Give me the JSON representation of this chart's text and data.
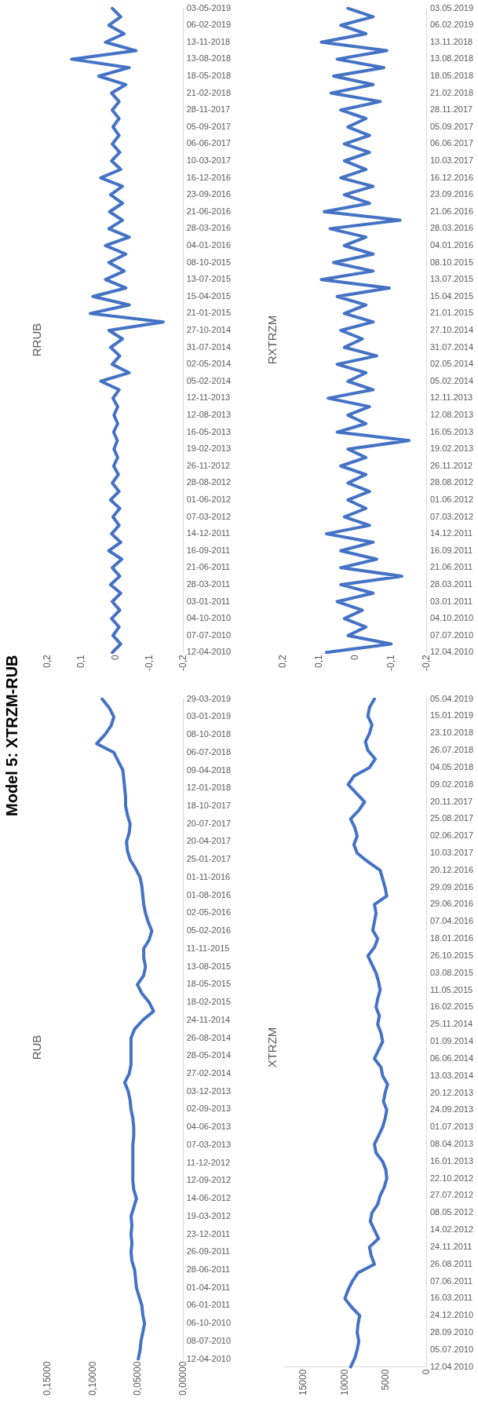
{
  "chart_data": [
    {
      "type": "line",
      "title": "RRUB",
      "orientation": "horizontal",
      "annotations": [
        "Model 5: XTRZM-RUB"
      ],
      "categories": [
        "03-05-2019",
        null,
        "06-02-2019",
        null,
        "13-11-2018",
        null,
        "13-08-2018",
        null,
        "18-05-2018",
        null,
        "21-02-2018",
        null,
        "28-11-2017",
        null,
        "05-09-2017",
        null,
        "06-06-2017",
        null,
        "10-03-2017",
        null,
        "16-12-2016",
        null,
        "23-09-2016",
        null,
        "21-06-2016",
        null,
        "28-03-2016",
        null,
        "04-01-2016",
        null,
        "08-10-2015",
        null,
        "13-07-2015",
        null,
        "15-04-2015",
        null,
        "21-01-2015",
        null,
        "27-10-2014",
        null,
        "31-07-2014",
        null,
        "02-05-2014",
        null,
        "05-02-2014",
        null,
        "12-11-2013",
        null,
        "12-08-2013",
        null,
        "16-05-2013",
        null,
        "19-02-2013",
        null,
        "26-11-2012",
        null,
        "28-08-2012",
        null,
        "01-06-2012",
        null,
        "07-03-2012",
        null,
        "14-12-2011",
        null,
        "16-09-2011",
        null,
        "21-06-2011",
        null,
        "28-03-2011",
        null,
        "03-01-2011",
        null,
        "04-10-2010",
        null,
        "07-07-2010",
        null,
        "12-04-2010"
      ],
      "values": [
        0.01,
        -0.015,
        0.02,
        -0.025,
        0.03,
        -0.06,
        0.13,
        -0.04,
        0.05,
        -0.03,
        0.012,
        -0.01,
        0.01,
        -0.01,
        0.008,
        -0.01,
        0.01,
        -0.012,
        0.012,
        -0.015,
        0.044,
        -0.02,
        0.015,
        -0.02,
        0.018,
        -0.02,
        0.02,
        -0.04,
        0.03,
        -0.03,
        0.02,
        -0.025,
        0.03,
        -0.03,
        0.067,
        -0.04,
        0.075,
        -0.14,
        0.02,
        -0.02,
        0.015,
        -0.012,
        0.01,
        -0.04,
        0.044,
        -0.01,
        0.008,
        -0.006,
        0.005,
        -0.006,
        0.006,
        -0.005,
        0.005,
        -0.006,
        0.006,
        -0.008,
        0.01,
        -0.01,
        0.015,
        -0.012,
        0.008,
        -0.01,
        0.012,
        -0.015,
        0.02,
        -0.018,
        0.01,
        -0.012,
        0.015,
        -0.015,
        0.01,
        -0.012,
        0.012,
        -0.01,
        0.008,
        -0.015,
        0.01
      ],
      "color": "#4472c4",
      "xlim": [
        0.2,
        -0.2
      ],
      "xticks": [
        {
          "value": 0.2,
          "label": "0,2"
        },
        {
          "value": 0.1,
          "label": "0,1"
        },
        0,
        {
          "value": -0.1,
          "label": "-0,1"
        },
        {
          "value": -0.2,
          "label": "-0,2"
        }
      ]
    },
    {
      "type": "line",
      "title": "RXTRZM",
      "orientation": "horizontal",
      "categories": [
        "03.05.2019",
        null,
        "06.02.2019",
        null,
        "13.11.2018",
        null,
        "13.08.2018",
        null,
        "18.05.2018",
        null,
        "21.02.2018",
        null,
        "28.11.2017",
        null,
        "05.09.2017",
        null,
        "06.06.2017",
        null,
        "10.03.2017",
        null,
        "16.12.2016",
        null,
        "23.09.2016",
        null,
        "21.06.2016",
        null,
        "28.03.2016",
        null,
        "04.01.2016",
        null,
        "08.10.2015",
        null,
        "13.07.2015",
        null,
        "15.04.2015",
        null,
        "21.01.2015",
        null,
        "27.10.2014",
        null,
        "31.07.2014",
        null,
        "02.05.2014",
        null,
        "05.02.2014",
        null,
        "12.11.2013",
        null,
        "12.08.2013",
        null,
        "16.05.2013",
        null,
        "19.02.2013",
        null,
        "26.11.2012",
        null,
        "28.08.2012",
        null,
        "01.06.2012",
        null,
        "07.03.2012",
        null,
        "14.12.2011",
        null,
        "16.09.2011",
        null,
        "21.06.2011",
        null,
        "28.03.2011",
        null,
        "03.01.2011",
        null,
        "04.10.2010",
        null,
        "07.07.2010",
        null,
        "12.04.2010"
      ],
      "values": [
        0.02,
        -0.05,
        0.04,
        -0.03,
        0.094,
        -0.088,
        0.05,
        -0.08,
        0.06,
        -0.05,
        0.067,
        -0.07,
        0.04,
        -0.03,
        0.02,
        -0.04,
        0.03,
        -0.04,
        0.03,
        -0.03,
        0.04,
        -0.05,
        0.03,
        -0.04,
        0.086,
        -0.125,
        0.07,
        -0.03,
        0.03,
        -0.05,
        0.06,
        -0.05,
        0.094,
        -0.095,
        0.05,
        -0.03,
        0.03,
        -0.05,
        0.04,
        -0.02,
        0.03,
        -0.06,
        0.05,
        -0.03,
        0.02,
        -0.05,
        0.075,
        -0.04,
        0.02,
        -0.03,
        0.05,
        -0.15,
        0.02,
        -0.03,
        0.04,
        -0.03,
        0.02,
        -0.04,
        0.02,
        -0.03,
        0.03,
        -0.04,
        0.08,
        -0.05,
        0.04,
        -0.06,
        0.04,
        -0.13,
        0.04,
        -0.05,
        0.05,
        -0.02,
        0.03,
        -0.03,
        0.02,
        -0.1,
        0.08
      ],
      "color": "#4472c4",
      "xlim": [
        0.2,
        -0.2
      ],
      "xticks": [
        {
          "value": 0.2,
          "label": "0,2"
        },
        {
          "value": 0.1,
          "label": "0,1"
        },
        0,
        {
          "value": -0.1,
          "label": "-0,1"
        },
        {
          "value": -0.2,
          "label": "-0,2"
        }
      ]
    },
    {
      "type": "line",
      "title": "RUB",
      "orientation": "horizontal",
      "categories": [
        "29-03-2019",
        null,
        "03-01-2019",
        null,
        "08-10-2018",
        null,
        "06-07-2018",
        null,
        "09-04-2018",
        null,
        "12-01-2018",
        null,
        "18-10-2017",
        null,
        "20-07-2017",
        null,
        "20-04-2017",
        null,
        "25-01-2017",
        null,
        "01-11-2016",
        null,
        "01-08-2016",
        null,
        "02-05-2016",
        null,
        "05-02-2016",
        null,
        "11-11-2015",
        null,
        "13-08-2015",
        null,
        "18-05-2015",
        null,
        "18-02-2015",
        null,
        "24-11-2014",
        null,
        "26-08-2014",
        null,
        "28-05-2014",
        null,
        "27-02-2014",
        null,
        "03-12-2013",
        null,
        "02-09-2013",
        null,
        "04-06-2013",
        null,
        "07-03-2013",
        null,
        "11-12-2012",
        null,
        "12-09-2012",
        null,
        "14-06-2012",
        null,
        "19-03-2012",
        null,
        "23-12-2011",
        null,
        "26-09-2011",
        null,
        "28-06-2011",
        null,
        "01-04-2011",
        null,
        "06-01-2011",
        null,
        "06-10-2010",
        null,
        "08-07-2010",
        null,
        "12-04-2010"
      ],
      "values": [
        0.09,
        0.082,
        0.077,
        0.08,
        0.087,
        0.096,
        0.077,
        0.072,
        0.067,
        0.066,
        0.065,
        0.064,
        0.064,
        0.062,
        0.059,
        0.06,
        0.063,
        0.062,
        0.059,
        0.053,
        0.048,
        0.046,
        0.045,
        0.044,
        0.042,
        0.039,
        0.035,
        0.038,
        0.044,
        0.044,
        0.042,
        0.044,
        0.051,
        0.046,
        0.038,
        0.033,
        0.045,
        0.054,
        0.058,
        0.058,
        0.058,
        0.058,
        0.06,
        0.065,
        0.061,
        0.059,
        0.058,
        0.056,
        0.055,
        0.055,
        0.056,
        0.056,
        0.056,
        0.056,
        0.056,
        0.055,
        0.052,
        0.055,
        0.058,
        0.057,
        0.058,
        0.057,
        0.058,
        0.057,
        0.054,
        0.053,
        0.052,
        0.049,
        0.046,
        0.045,
        0.043,
        0.045,
        0.047,
        0.048,
        0.05
      ],
      "color": "#4472c4",
      "xlim": [
        0.15,
        0
      ],
      "xticks": [
        {
          "value": 0.15,
          "label": "0,15000"
        },
        {
          "value": 0.1,
          "label": "0,10000"
        },
        {
          "value": 0.05,
          "label": "0,05000"
        },
        {
          "value": 0,
          "label": "0,00000"
        }
      ]
    },
    {
      "type": "line",
      "title": "XTRZM",
      "orientation": "horizontal",
      "categories": [
        "05.04.2019",
        null,
        "15.01.2019",
        null,
        "23.10.2018",
        null,
        "26.07.2018",
        null,
        "04.05.2018",
        null,
        "09.02.2018",
        null,
        "20.11.2017",
        null,
        "25.08.2017",
        null,
        "02.06.2017",
        null,
        "10.03.2017",
        null,
        "20.12.2016",
        null,
        "29.09.2016",
        null,
        "29.06.2016",
        null,
        "07.04.2016",
        null,
        "18.01.2016",
        null,
        "26.10.2015",
        null,
        "03.08.2015",
        null,
        "11.05.2015",
        null,
        "16.02.2015",
        null,
        "25.11.2014",
        null,
        "01.09.2014",
        null,
        "06.06.2014",
        null,
        "13.03.2014",
        null,
        "20.12.2013",
        null,
        "24.09.2013",
        null,
        "01.07.2013",
        null,
        "08.04.2013",
        null,
        "16.01.2013",
        null,
        "22.10.2012",
        null,
        "27.07.2012",
        null,
        "08.05.2012",
        null,
        "14.02.2012",
        null,
        "24.11.2011",
        null,
        "26.08.2011",
        null,
        "07.06.2011",
        null,
        "16.03.2011",
        null,
        "24.12.2010",
        null,
        "28.09.2010",
        null,
        "05.07.2010",
        null,
        "12.04.2010"
      ],
      "values": [
        6400,
        7000,
        7200,
        6700,
        7000,
        7500,
        7200,
        6300,
        7000,
        8900,
        9600,
        8600,
        7600,
        8300,
        9300,
        8800,
        8500,
        8900,
        8500,
        7200,
        5700,
        5400,
        5100,
        4900,
        6400,
        6200,
        6400,
        6600,
        6000,
        6400,
        7200,
        6700,
        6200,
        5900,
        5700,
        6000,
        6200,
        5800,
        6000,
        5600,
        5400,
        5900,
        6400,
        5600,
        5400,
        4800,
        5100,
        5300,
        4900,
        5100,
        5400,
        5900,
        6400,
        6200,
        5400,
        5000,
        4900,
        5200,
        5700,
        6000,
        6700,
        6900,
        6400,
        5900,
        7000,
        6800,
        6400,
        8400,
        9100,
        9600,
        10000,
        9200,
        8200,
        8400,
        8500,
        8300,
        8500,
        8800,
        9300
      ],
      "color": "#4472c4",
      "xlim": [
        17500,
        0
      ],
      "xticks": [
        15000,
        10000,
        5000,
        0
      ]
    }
  ]
}
